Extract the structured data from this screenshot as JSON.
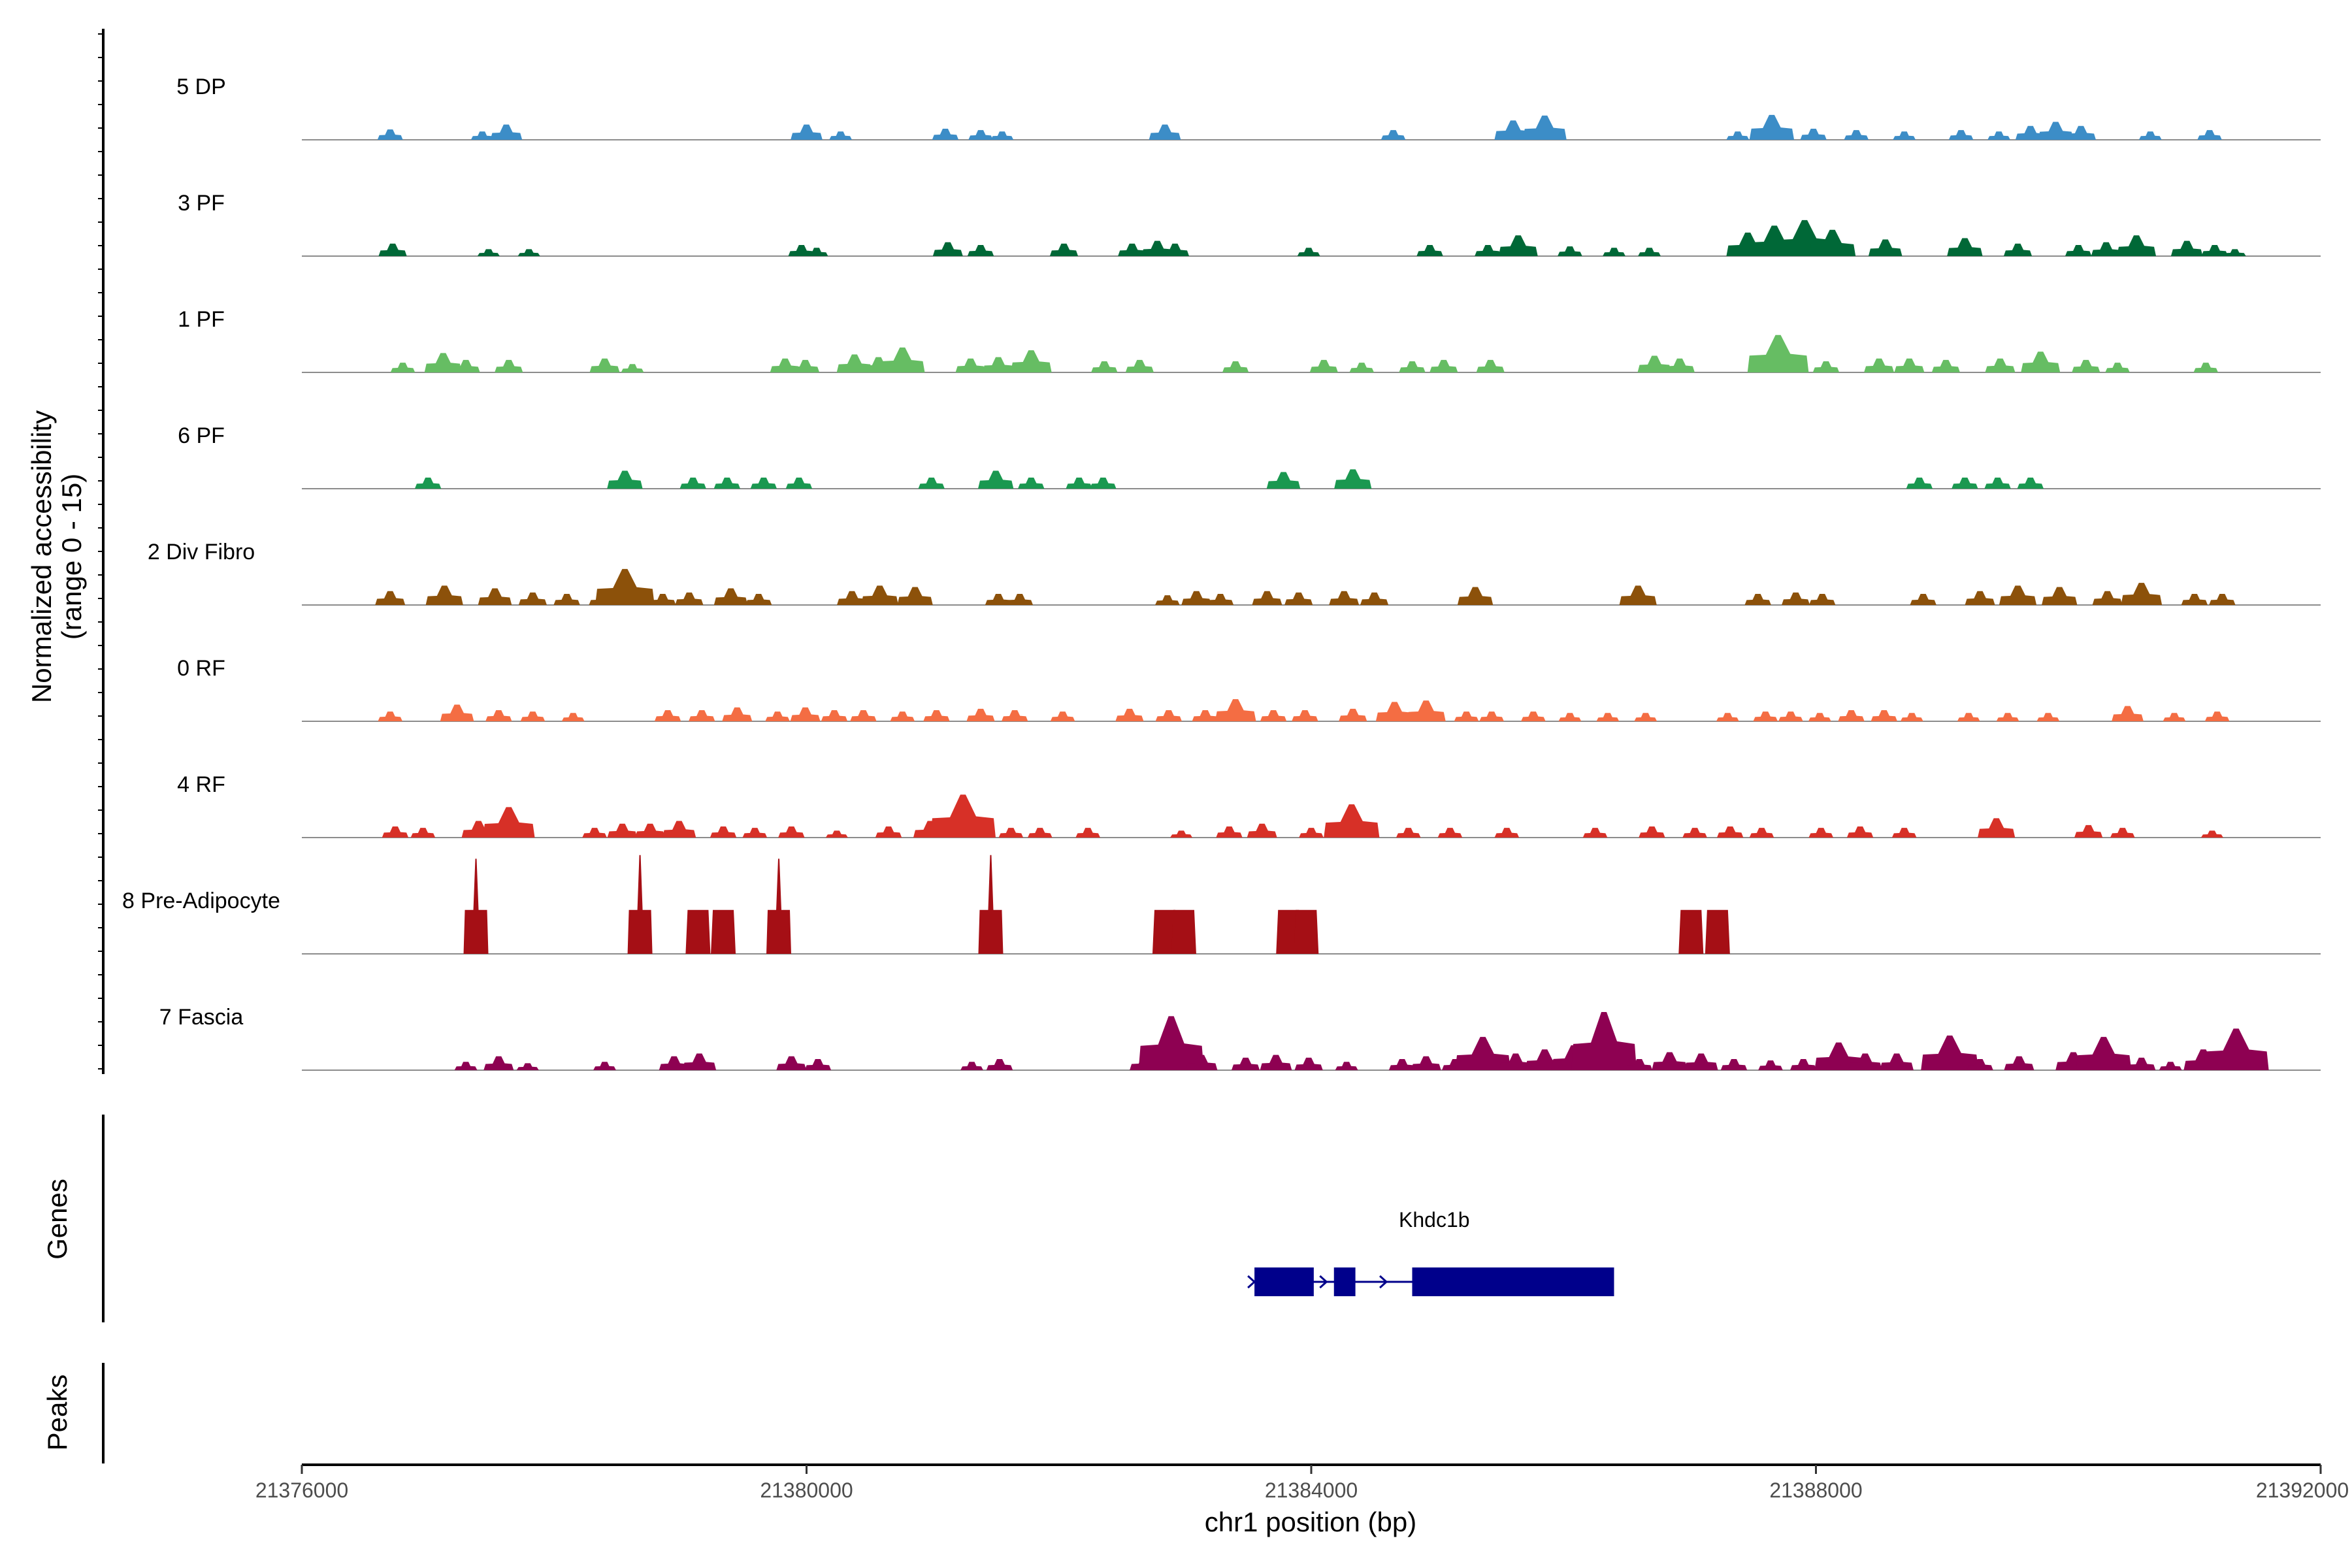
{
  "chart_data": {
    "type": "area",
    "title": "",
    "xlabel": "chr1 position (bp)",
    "ylabel": "Normalized accessibility",
    "ylabel_sub": "(range 0 - 15)",
    "xlim": [
      21376000,
      21392000
    ],
    "ylim": [
      0,
      15
    ],
    "x_ticks": [
      {
        "value": 21376000,
        "label": "21376000"
      },
      {
        "value": 21380000,
        "label": "21380000"
      },
      {
        "value": 21384000,
        "label": "21384000"
      },
      {
        "value": 21388000,
        "label": "21388000"
      },
      {
        "value": 21392000,
        "label": "21392000"
      }
    ],
    "panel_titles": {
      "genes": "Genes",
      "peaks": "Peaks"
    },
    "series": [
      {
        "name": "5 DP",
        "color": "#3C8DC7",
        "peaks": [
          [
            21376700,
            1.5
          ],
          [
            21377430,
            1.2
          ],
          [
            21377620,
            2.2
          ],
          [
            21380000,
            2.2
          ],
          [
            21380270,
            1.2
          ],
          [
            21381100,
            1.6
          ],
          [
            21381380,
            1.4
          ],
          [
            21381550,
            1.2
          ],
          [
            21382840,
            2.2
          ],
          [
            21384650,
            1.4
          ],
          [
            21385600,
            2.8
          ],
          [
            21385850,
            3.5
          ],
          [
            21387380,
            1.2
          ],
          [
            21387650,
            3.6
          ],
          [
            21387980,
            1.6
          ],
          [
            21388320,
            1.4
          ],
          [
            21388700,
            1.2
          ],
          [
            21389150,
            1.4
          ],
          [
            21389450,
            1.2
          ],
          [
            21389700,
            2.0
          ],
          [
            21389900,
            2.6
          ],
          [
            21390100,
            2.0
          ],
          [
            21390650,
            1.2
          ],
          [
            21391120,
            1.4
          ]
        ]
      },
      {
        "name": "3 PF",
        "color": "#006837",
        "peaks": [
          [
            21376720,
            1.8
          ],
          [
            21377480,
            1.0
          ],
          [
            21377800,
            1.0
          ],
          [
            21379960,
            1.6
          ],
          [
            21380080,
            1.2
          ],
          [
            21381120,
            2.0
          ],
          [
            21381380,
            1.6
          ],
          [
            21382040,
            1.8
          ],
          [
            21382580,
            1.8
          ],
          [
            21382780,
            2.2
          ],
          [
            21382920,
            1.8
          ],
          [
            21383980,
            1.2
          ],
          [
            21384940,
            1.6
          ],
          [
            21385400,
            1.6
          ],
          [
            21385640,
            3.0
          ],
          [
            21386050,
            1.4
          ],
          [
            21386400,
            1.2
          ],
          [
            21386680,
            1.2
          ],
          [
            21387460,
            3.4
          ],
          [
            21387670,
            4.4
          ],
          [
            21387910,
            5.2
          ],
          [
            21388130,
            3.8
          ],
          [
            21388550,
            2.4
          ],
          [
            21389180,
            2.6
          ],
          [
            21389600,
            1.8
          ],
          [
            21390080,
            1.6
          ],
          [
            21390300,
            2.0
          ],
          [
            21390540,
            3.0
          ],
          [
            21390940,
            2.2
          ],
          [
            21391160,
            1.6
          ],
          [
            21391320,
            1.0
          ]
        ]
      },
      {
        "name": "1 PF",
        "color": "#66BD63",
        "peaks": [
          [
            21376800,
            1.4
          ],
          [
            21377120,
            2.8
          ],
          [
            21377300,
            1.8
          ],
          [
            21377640,
            1.8
          ],
          [
            21378400,
            2.0
          ],
          [
            21378620,
            1.2
          ],
          [
            21379830,
            2.0
          ],
          [
            21379990,
            1.8
          ],
          [
            21380380,
            2.6
          ],
          [
            21380570,
            2.2
          ],
          [
            21380760,
            3.6
          ],
          [
            21381300,
            2.0
          ],
          [
            21381520,
            2.2
          ],
          [
            21381780,
            3.2
          ],
          [
            21382360,
            1.6
          ],
          [
            21382640,
            1.8
          ],
          [
            21383400,
            1.6
          ],
          [
            21384100,
            1.8
          ],
          [
            21384400,
            1.4
          ],
          [
            21384800,
            1.6
          ],
          [
            21385050,
            1.8
          ],
          [
            21385420,
            1.8
          ],
          [
            21386720,
            2.4
          ],
          [
            21386920,
            2.0
          ],
          [
            21387700,
            5.4
          ],
          [
            21388080,
            1.6
          ],
          [
            21388500,
            2.0
          ],
          [
            21388740,
            2.0
          ],
          [
            21389030,
            1.8
          ],
          [
            21389460,
            2.0
          ],
          [
            21389780,
            3.0
          ],
          [
            21390140,
            1.8
          ],
          [
            21390390,
            1.4
          ],
          [
            21391090,
            1.4
          ]
        ]
      },
      {
        "name": "6 PF",
        "color": "#1A9850",
        "peaks": [
          [
            21377000,
            1.6
          ],
          [
            21378560,
            2.6
          ],
          [
            21379100,
            1.6
          ],
          [
            21379370,
            1.6
          ],
          [
            21379660,
            1.6
          ],
          [
            21379940,
            1.6
          ],
          [
            21380990,
            1.6
          ],
          [
            21381500,
            2.6
          ],
          [
            21381780,
            1.6
          ],
          [
            21382160,
            1.6
          ],
          [
            21382350,
            1.6
          ],
          [
            21383780,
            2.4
          ],
          [
            21384330,
            2.8
          ],
          [
            21388820,
            1.6
          ],
          [
            21389180,
            1.6
          ],
          [
            21389440,
            1.6
          ],
          [
            21389700,
            1.6
          ]
        ]
      },
      {
        "name": "2 Div Fibro",
        "color": "#8C510A",
        "peaks": [
          [
            21376700,
            2.0
          ],
          [
            21377130,
            2.8
          ],
          [
            21377530,
            2.4
          ],
          [
            21377830,
            1.8
          ],
          [
            21378100,
            1.6
          ],
          [
            21378380,
            1.6
          ],
          [
            21378560,
            5.2
          ],
          [
            21378860,
            1.6
          ],
          [
            21379070,
            1.8
          ],
          [
            21379400,
            2.4
          ],
          [
            21379620,
            1.6
          ],
          [
            21380360,
            2.0
          ],
          [
            21380580,
            2.8
          ],
          [
            21380860,
            2.6
          ],
          [
            21381520,
            1.6
          ],
          [
            21381690,
            1.6
          ],
          [
            21382860,
            1.4
          ],
          [
            21383090,
            2.0
          ],
          [
            21383280,
            1.6
          ],
          [
            21383650,
            2.0
          ],
          [
            21383900,
            1.8
          ],
          [
            21384260,
            2.0
          ],
          [
            21384500,
            1.8
          ],
          [
            21385300,
            2.6
          ],
          [
            21386590,
            2.8
          ],
          [
            21387540,
            1.6
          ],
          [
            21387840,
            1.8
          ],
          [
            21388050,
            1.6
          ],
          [
            21388850,
            1.6
          ],
          [
            21389300,
            2.0
          ],
          [
            21389600,
            2.8
          ],
          [
            21389930,
            2.6
          ],
          [
            21390310,
            2.0
          ],
          [
            21390580,
            3.2
          ],
          [
            21391000,
            1.6
          ],
          [
            21391220,
            1.6
          ]
        ]
      },
      {
        "name": "0 RF",
        "color": "#F46D43",
        "peaks": [
          [
            21376700,
            1.4
          ],
          [
            21377230,
            2.4
          ],
          [
            21377560,
            1.6
          ],
          [
            21377830,
            1.4
          ],
          [
            21378150,
            1.2
          ],
          [
            21378900,
            1.6
          ],
          [
            21379170,
            1.6
          ],
          [
            21379450,
            2.0
          ],
          [
            21379770,
            1.4
          ],
          [
            21379990,
            2.0
          ],
          [
            21380220,
            1.6
          ],
          [
            21380450,
            1.6
          ],
          [
            21380760,
            1.4
          ],
          [
            21381030,
            1.6
          ],
          [
            21381380,
            1.8
          ],
          [
            21381650,
            1.6
          ],
          [
            21382030,
            1.4
          ],
          [
            21382560,
            1.8
          ],
          [
            21382870,
            1.6
          ],
          [
            21383160,
            1.6
          ],
          [
            21383400,
            3.2
          ],
          [
            21383700,
            1.6
          ],
          [
            21383950,
            1.6
          ],
          [
            21384330,
            1.8
          ],
          [
            21384660,
            2.8
          ],
          [
            21384910,
            3.0
          ],
          [
            21385230,
            1.4
          ],
          [
            21385430,
            1.4
          ],
          [
            21385760,
            1.4
          ],
          [
            21386050,
            1.2
          ],
          [
            21386350,
            1.2
          ],
          [
            21386650,
            1.2
          ],
          [
            21387300,
            1.2
          ],
          [
            21387600,
            1.4
          ],
          [
            21387800,
            1.4
          ],
          [
            21388030,
            1.2
          ],
          [
            21388280,
            1.6
          ],
          [
            21388540,
            1.6
          ],
          [
            21388760,
            1.2
          ],
          [
            21389210,
            1.2
          ],
          [
            21389520,
            1.2
          ],
          [
            21389840,
            1.2
          ],
          [
            21390470,
            2.2
          ],
          [
            21390840,
            1.2
          ],
          [
            21391180,
            1.4
          ]
        ]
      },
      {
        "name": "4 RF",
        "color": "#D73027",
        "peaks": [
          [
            21376740,
            1.6
          ],
          [
            21376960,
            1.4
          ],
          [
            21377400,
            2.4
          ],
          [
            21377640,
            4.4
          ],
          [
            21378320,
            1.4
          ],
          [
            21378540,
            2.0
          ],
          [
            21378760,
            2.0
          ],
          [
            21378990,
            2.4
          ],
          [
            21379340,
            1.6
          ],
          [
            21379590,
            1.4
          ],
          [
            21379880,
            1.6
          ],
          [
            21380240,
            1.0
          ],
          [
            21380650,
            1.6
          ],
          [
            21380980,
            2.4
          ],
          [
            21381240,
            6.2
          ],
          [
            21381620,
            1.4
          ],
          [
            21381850,
            1.4
          ],
          [
            21382230,
            1.4
          ],
          [
            21382970,
            1.0
          ],
          [
            21383350,
            1.6
          ],
          [
            21383610,
            2.0
          ],
          [
            21384000,
            1.4
          ],
          [
            21384320,
            4.8
          ],
          [
            21384770,
            1.4
          ],
          [
            21385100,
            1.4
          ],
          [
            21385550,
            1.4
          ],
          [
            21386250,
            1.4
          ],
          [
            21386700,
            1.6
          ],
          [
            21387040,
            1.4
          ],
          [
            21387320,
            1.6
          ],
          [
            21387570,
            1.4
          ],
          [
            21388040,
            1.4
          ],
          [
            21388350,
            1.6
          ],
          [
            21388700,
            1.4
          ],
          [
            21389430,
            2.8
          ],
          [
            21390160,
            1.8
          ],
          [
            21390430,
            1.4
          ],
          [
            21391140,
            1.0
          ]
        ]
      },
      {
        "name": "8 Pre-Adipocyte",
        "color": "#A50F15",
        "peaks": [
          [
            21377380,
            13.0
          ],
          [
            21378680,
            13.5
          ],
          [
            21379140,
            6.0
          ],
          [
            21379340,
            6.0
          ],
          [
            21379780,
            13.0
          ],
          [
            21381460,
            13.5
          ],
          [
            21382840,
            6.0
          ],
          [
            21382990,
            6.0
          ],
          [
            21383820,
            6.0
          ],
          [
            21383960,
            6.0
          ],
          [
            21387010,
            6.0
          ],
          [
            21387220,
            6.0
          ]
        ]
      },
      {
        "name": "7 Fascia",
        "color": "#8E0152",
        "peaks": [
          [
            21377300,
            1.2
          ],
          [
            21377560,
            2.0
          ],
          [
            21377790,
            1.0
          ],
          [
            21378400,
            1.2
          ],
          [
            21378950,
            2.0
          ],
          [
            21379150,
            2.4
          ],
          [
            21379880,
            2.0
          ],
          [
            21380090,
            1.6
          ],
          [
            21381310,
            1.2
          ],
          [
            21381530,
            1.6
          ],
          [
            21382680,
            2.0
          ],
          [
            21382890,
            7.8
          ],
          [
            21383130,
            2.2
          ],
          [
            21383480,
            1.8
          ],
          [
            21383720,
            2.2
          ],
          [
            21383980,
            1.8
          ],
          [
            21384280,
            1.2
          ],
          [
            21384720,
            1.6
          ],
          [
            21384910,
            2.0
          ],
          [
            21385140,
            1.6
          ],
          [
            21385360,
            4.8
          ],
          [
            21385620,
            2.4
          ],
          [
            21385850,
            3.0
          ],
          [
            21386080,
            3.6
          ],
          [
            21386320,
            8.4
          ],
          [
            21386600,
            1.6
          ],
          [
            21386840,
            2.6
          ],
          [
            21387090,
            2.4
          ],
          [
            21387350,
            1.6
          ],
          [
            21387640,
            1.4
          ],
          [
            21387900,
            1.6
          ],
          [
            21388180,
            4.0
          ],
          [
            21388390,
            2.4
          ],
          [
            21388640,
            2.4
          ],
          [
            21389060,
            5.0
          ],
          [
            21389300,
            1.6
          ],
          [
            21389610,
            2.0
          ],
          [
            21390040,
            2.6
          ],
          [
            21390280,
            4.8
          ],
          [
            21390580,
            1.8
          ],
          [
            21390810,
            1.2
          ],
          [
            21391070,
            3.0
          ],
          [
            21391330,
            6.0
          ]
        ]
      }
    ],
    "genes": [
      {
        "name": "Khdc1b",
        "strand": "+",
        "start": 21383550,
        "end": 21386400,
        "color": "#00008B",
        "exons": [
          [
            21383550,
            21384020
          ],
          [
            21384180,
            21384350
          ],
          [
            21384800,
            21386400
          ]
        ]
      }
    ],
    "peaks_track": []
  }
}
